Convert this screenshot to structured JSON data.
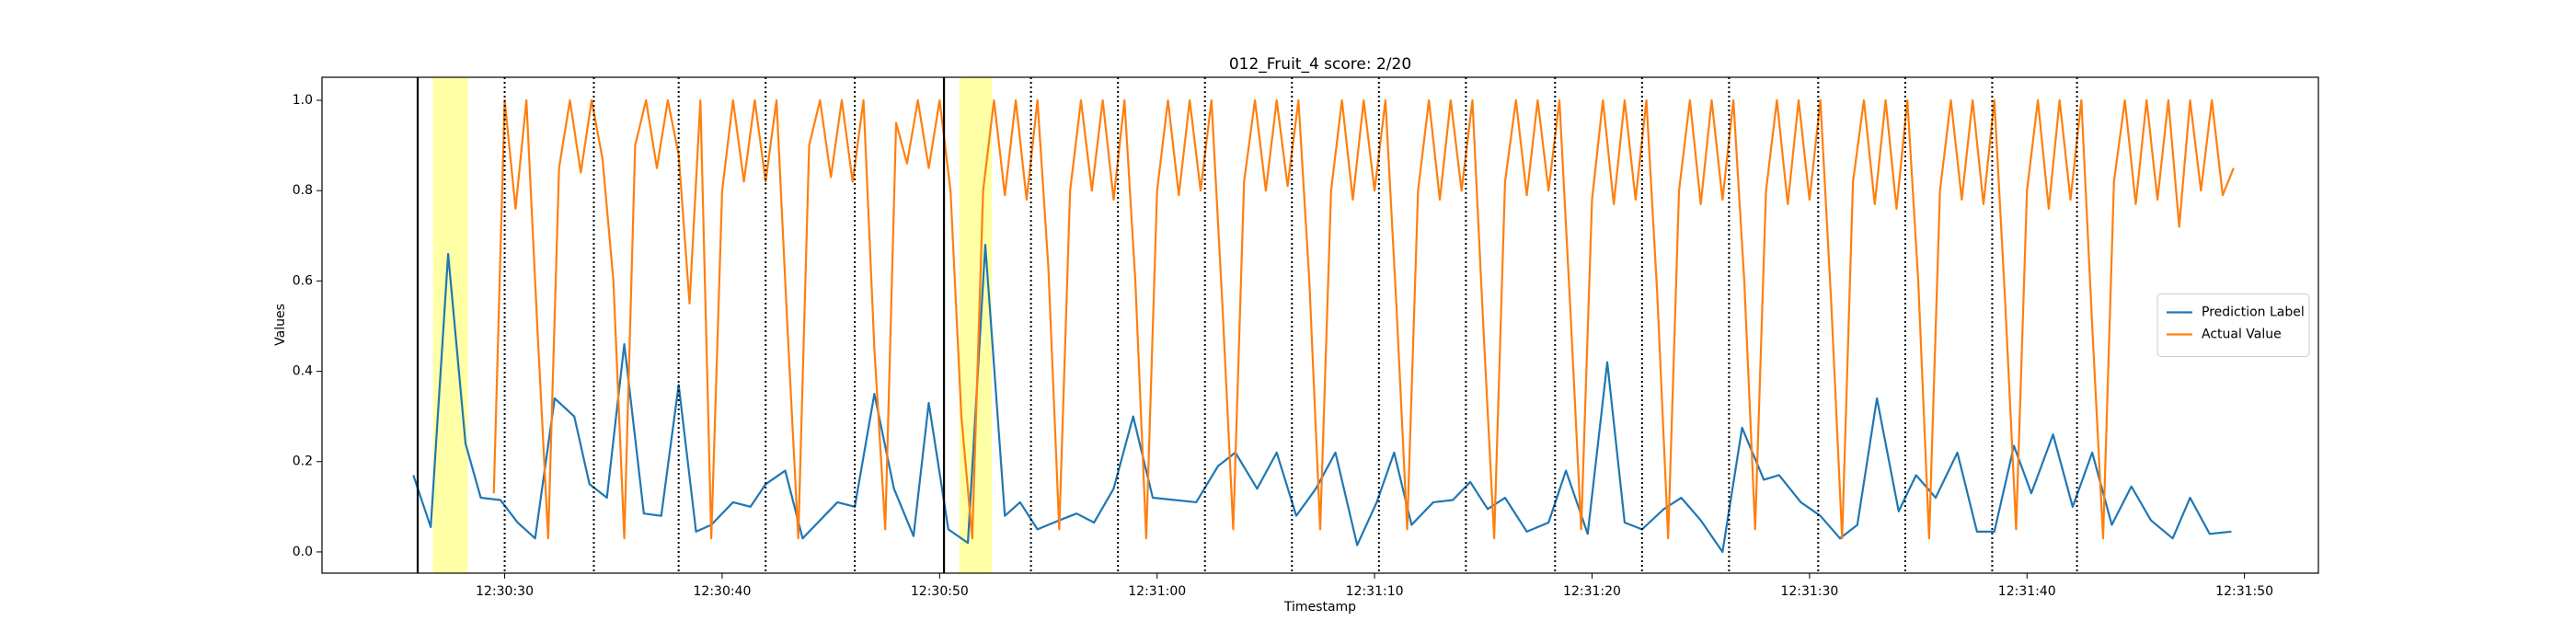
{
  "chart_data": {
    "type": "line",
    "title": "012_Fruit_4 score: 2/20",
    "x_label": "Timestamp",
    "y_label": "Values",
    "xlim": [
      45021.6,
      45113.4
    ],
    "ylim": [
      -0.047,
      1.051
    ],
    "xticks": [
      {
        "value": 45030,
        "label": "12:30:30"
      },
      {
        "value": 45040,
        "label": "12:30:40"
      },
      {
        "value": 45050,
        "label": "12:30:50"
      },
      {
        "value": 45060,
        "label": "12:31:00"
      },
      {
        "value": 45070,
        "label": "12:31:10"
      },
      {
        "value": 45080,
        "label": "12:31:20"
      },
      {
        "value": 45090,
        "label": "12:31:30"
      },
      {
        "value": 45100,
        "label": "12:31:40"
      },
      {
        "value": 45110,
        "label": "12:31:50"
      }
    ],
    "yticks": [
      {
        "value": 0,
        "label": "0.0"
      },
      {
        "value": 0.2,
        "label": "0.2"
      },
      {
        "value": 0.4,
        "label": "0.4"
      },
      {
        "value": 0.6,
        "label": "0.6"
      },
      {
        "value": 0.8,
        "label": "0.8"
      },
      {
        "value": 1,
        "label": "1.0"
      }
    ],
    "legend": "center right",
    "spans": [
      [
        45026.7,
        45028.3
      ],
      [
        45050.9,
        45052.4
      ]
    ],
    "span_color": "#ffff80",
    "solid_lines": [
      45026.0,
      45050.2
    ],
    "dotted_lines": [
      45030.0,
      45034.1,
      45038.0,
      45042.0,
      45046.1,
      45054.2,
      45058.2,
      45062.2,
      45066.2,
      45070.2,
      45074.2,
      45078.3,
      45082.3,
      45086.3,
      45090.4,
      45094.4,
      45098.4,
      45102.3
    ],
    "series": [
      {
        "name": "Prediction Label",
        "color": "#1f77b4",
        "x": [
          45025.8,
          45026.6,
          45027.4,
          45028.2,
          45028.9,
          45029.8,
          45030.6,
          45031.4,
          45032.3,
          45033.2,
          45033.9,
          45034.7,
          45035.5,
          45036.4,
          45037.2,
          45038.0,
          45038.8,
          45039.5,
          45040.5,
          45041.3,
          45042.0,
          45042.9,
          45043.7,
          45044.5,
          45045.3,
          45046.1,
          45047.0,
          45047.9,
          45048.8,
          45049.5,
          45050.4,
          45051.3,
          45052.1,
          45053.0,
          45053.7,
          45054.5,
          45055.5,
          45056.3,
          45057.1,
          45058.0,
          45058.9,
          45059.8,
          45061.8,
          45062.8,
          45063.6,
          45064.6,
          45065.5,
          45066.4,
          45067.3,
          45068.2,
          45069.2,
          45070.1,
          45070.9,
          45071.7,
          45072.7,
          45073.6,
          45074.4,
          45075.2,
          45076.0,
          45077.0,
          45078.0,
          45078.8,
          45079.8,
          45080.7,
          45081.5,
          45082.3,
          45083.3,
          45084.1,
          45085.0,
          45086.0,
          45086.9,
          45087.9,
          45088.6,
          45089.6,
          45090.5,
          45091.4,
          45092.2,
          45093.1,
          45094.1,
          45094.9,
          45095.8,
          45096.8,
          45097.7,
          45098.5,
          45099.4,
          45100.2,
          45101.2,
          45102.1,
          45103.0,
          45103.9,
          45104.8,
          45105.7,
          45106.7,
          45107.5,
          45108.4,
          45109.4
        ],
        "values": [
          0.17,
          0.055,
          0.66,
          0.24,
          0.12,
          0.115,
          0.065,
          0.03,
          0.34,
          0.3,
          0.15,
          0.12,
          0.46,
          0.085,
          0.08,
          0.37,
          0.045,
          0.06,
          0.11,
          0.1,
          0.15,
          0.18,
          0.03,
          0.07,
          0.11,
          0.1,
          0.35,
          0.14,
          0.035,
          0.33,
          0.05,
          0.02,
          0.68,
          0.08,
          0.11,
          0.05,
          0.07,
          0.085,
          0.065,
          0.14,
          0.3,
          0.12,
          0.11,
          0.19,
          0.22,
          0.14,
          0.22,
          0.08,
          0.14,
          0.22,
          0.015,
          0.11,
          0.22,
          0.06,
          0.11,
          0.115,
          0.155,
          0.095,
          0.12,
          0.045,
          0.065,
          0.18,
          0.04,
          0.42,
          0.065,
          0.05,
          0.095,
          0.12,
          0.07,
          0.0,
          0.275,
          0.16,
          0.17,
          0.11,
          0.08,
          0.03,
          0.06,
          0.34,
          0.09,
          0.17,
          0.12,
          0.22,
          0.045,
          0.045,
          0.235,
          0.13,
          0.26,
          0.1,
          0.22,
          0.06,
          0.145,
          0.07,
          0.03,
          0.12,
          0.04,
          0.045
        ]
      },
      {
        "name": "Actual Value",
        "color": "#ff7f0e",
        "x": [
          45029.5,
          45030,
          45030.5,
          45031,
          45031.5,
          45032,
          45032.5,
          45033,
          45033.5,
          45034,
          45034.5,
          45035,
          45035.5,
          45036,
          45036.5,
          45037,
          45037.5,
          45038,
          45038.5,
          45039,
          45039.5,
          45040,
          45040.5,
          45041,
          45041.5,
          45042,
          45042.5,
          45043,
          45043.5,
          45044,
          45044.5,
          45045,
          45045.5,
          45046,
          45046.5,
          45047,
          45047.5,
          45048,
          45048.5,
          45049,
          45049.5,
          45050,
          45050.5,
          45051,
          45051.5,
          45052,
          45052.5,
          45053,
          45053.5,
          45054,
          45054.5,
          45055,
          45055.5,
          45056,
          45056.5,
          45057,
          45057.5,
          45058,
          45058.5,
          45059,
          45059.5,
          45060,
          45060.5,
          45061,
          45061.5,
          45062,
          45062.5,
          45063,
          45063.5,
          45064,
          45064.5,
          45065,
          45065.5,
          45066,
          45066.5,
          45067,
          45067.5,
          45068,
          45068.5,
          45069,
          45069.5,
          45070,
          45070.5,
          45071,
          45071.5,
          45072,
          45072.5,
          45073,
          45073.5,
          45074,
          45074.5,
          45075,
          45075.5,
          45076,
          45076.5,
          45077,
          45077.5,
          45078,
          45078.5,
          45079,
          45079.5,
          45080,
          45080.5,
          45081,
          45081.5,
          45082,
          45082.5,
          45083,
          45083.5,
          45084,
          45084.5,
          45085,
          45085.5,
          45086,
          45086.5,
          45087,
          45087.5,
          45088,
          45088.5,
          45089,
          45089.5,
          45090,
          45090.5,
          45091,
          45091.5,
          45092,
          45092.5,
          45093,
          45093.5,
          45094,
          45094.5,
          45095,
          45095.5,
          45096,
          45096.5,
          45097,
          45097.5,
          45098,
          45098.5,
          45099,
          45099.5,
          45100,
          45100.5,
          45101,
          45101.5,
          45102,
          45102.5,
          45103,
          45103.5,
          45104,
          45104.5,
          45105,
          45105.5,
          45106,
          45106.5,
          45107,
          45107.5,
          45108,
          45108.5,
          45109,
          45109.5
        ],
        "values": [
          0.13,
          1.0,
          0.76,
          1.0,
          0.5,
          0.03,
          0.85,
          1.0,
          0.84,
          1.0,
          0.87,
          0.6,
          0.03,
          0.9,
          1.0,
          0.85,
          1.0,
          0.88,
          0.55,
          1.0,
          0.03,
          0.8,
          1.0,
          0.82,
          1.0,
          0.82,
          1.0,
          0.5,
          0.03,
          0.9,
          1.0,
          0.83,
          1.0,
          0.82,
          1.0,
          0.45,
          0.05,
          0.95,
          0.86,
          1.0,
          0.85,
          1.0,
          0.8,
          0.3,
          0.03,
          0.8,
          1.0,
          0.79,
          1.0,
          0.78,
          1.0,
          0.63,
          0.05,
          0.8,
          1.0,
          0.8,
          1.0,
          0.78,
          1.0,
          0.6,
          0.03,
          0.8,
          1.0,
          0.79,
          1.0,
          0.8,
          1.0,
          0.55,
          0.05,
          0.82,
          1.0,
          0.8,
          1.0,
          0.81,
          1.0,
          0.6,
          0.05,
          0.8,
          1.0,
          0.78,
          1.0,
          0.8,
          1.0,
          0.55,
          0.05,
          0.8,
          1.0,
          0.78,
          1.0,
          0.8,
          1.0,
          0.5,
          0.03,
          0.82,
          1.0,
          0.79,
          1.0,
          0.8,
          1.0,
          0.54,
          0.05,
          0.78,
          1.0,
          0.77,
          1.0,
          0.78,
          1.0,
          0.57,
          0.03,
          0.8,
          1.0,
          0.77,
          1.0,
          0.78,
          1.0,
          0.6,
          0.05,
          0.8,
          1.0,
          0.77,
          1.0,
          0.78,
          1.0,
          0.55,
          0.03,
          0.82,
          1.0,
          0.77,
          1.0,
          0.76,
          1.0,
          0.6,
          0.03,
          0.8,
          1.0,
          0.78,
          1.0,
          0.77,
          1.0,
          0.55,
          0.05,
          0.8,
          1.0,
          0.76,
          1.0,
          0.78,
          1.0,
          0.5,
          0.03,
          0.82,
          1.0,
          0.77,
          1.0,
          0.78,
          1.0,
          0.72,
          1.0,
          0.8,
          1.0,
          0.79,
          0.85
        ]
      }
    ]
  }
}
